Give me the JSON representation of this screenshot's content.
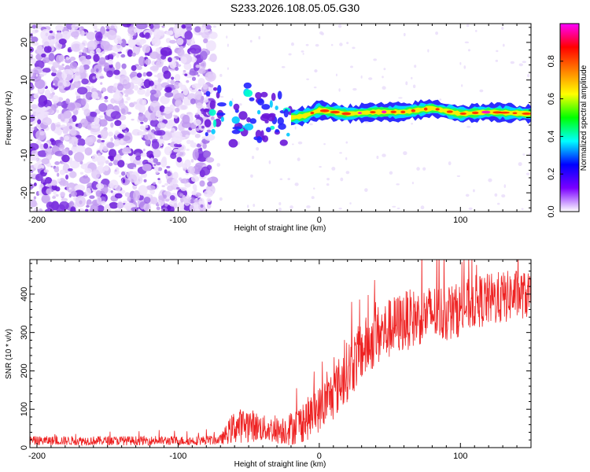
{
  "title": "S233.2026.108.05.05.G30",
  "chart_data": [
    {
      "type": "heatmap",
      "name": "spectrogram",
      "xlabel": "Height of straight line (km)",
      "ylabel": "Frequency (Hz)",
      "xlim": [
        -205,
        150
      ],
      "ylim": [
        -25,
        25
      ],
      "xticks": [
        -200,
        -100,
        0,
        100
      ],
      "yticks": [
        -20,
        -10,
        0,
        10,
        20
      ],
      "ridge": {
        "description": "Narrow-band signal near 0-2 Hz from about -80 km upward",
        "points": [
          {
            "x": -75,
            "y": 3
          },
          {
            "x": -65,
            "y": -1
          },
          {
            "x": -50,
            "y": 2
          },
          {
            "x": -35,
            "y": -1
          },
          {
            "x": -20,
            "y": 0
          },
          {
            "x": -10,
            "y": 0.5
          },
          {
            "x": 0,
            "y": 2
          },
          {
            "x": 20,
            "y": 1
          },
          {
            "x": 40,
            "y": 1.5
          },
          {
            "x": 60,
            "y": 1.5
          },
          {
            "x": 80,
            "y": 2.5
          },
          {
            "x": 100,
            "y": 1
          },
          {
            "x": 120,
            "y": 1.5
          },
          {
            "x": 150,
            "y": 1
          }
        ]
      },
      "colorbar": {
        "label": "Normalized spectral amplitude",
        "range": [
          0,
          1
        ],
        "ticks": [
          "0.0",
          "0.2",
          "0.4",
          "0.6",
          "0.8"
        ],
        "tick_values": [
          0,
          0.2,
          0.4,
          0.6,
          0.8
        ],
        "colors": [
          "#ffffff",
          "#7b00ff",
          "#0000ff",
          "#00ffff",
          "#00ff00",
          "#ffff00",
          "#ff8000",
          "#ff0000",
          "#ff00ff"
        ]
      }
    },
    {
      "type": "line",
      "name": "snr",
      "xlabel": "Height of straight line (km)",
      "ylabel": "SNR (10 * v/v)",
      "xlim": [
        -205,
        150
      ],
      "ylim": [
        0,
        490
      ],
      "xticks": [
        -200,
        -100,
        0,
        100
      ],
      "yticks": [
        0,
        100,
        200,
        300,
        400
      ],
      "color": "#ee2222",
      "series": [
        {
          "name": "SNR",
          "x": [
            -205,
            -180,
            -150,
            -120,
            -90,
            -70,
            -60,
            -50,
            -40,
            -30,
            -20,
            -10,
            0,
            10,
            20,
            30,
            40,
            50,
            60,
            70,
            80,
            90,
            100,
            110,
            120,
            130,
            140,
            150
          ],
          "mean": [
            18,
            18,
            18,
            18,
            18,
            20,
            55,
            60,
            50,
            45,
            50,
            70,
            100,
            140,
            200,
            250,
            290,
            310,
            330,
            340,
            350,
            350,
            360,
            380,
            385,
            390,
            400,
            395
          ],
          "spread": [
            12,
            12,
            12,
            12,
            12,
            12,
            45,
            45,
            35,
            35,
            45,
            55,
            60,
            70,
            80,
            80,
            80,
            80,
            80,
            75,
            75,
            75,
            70,
            70,
            70,
            70,
            65,
            60
          ]
        }
      ]
    }
  ]
}
